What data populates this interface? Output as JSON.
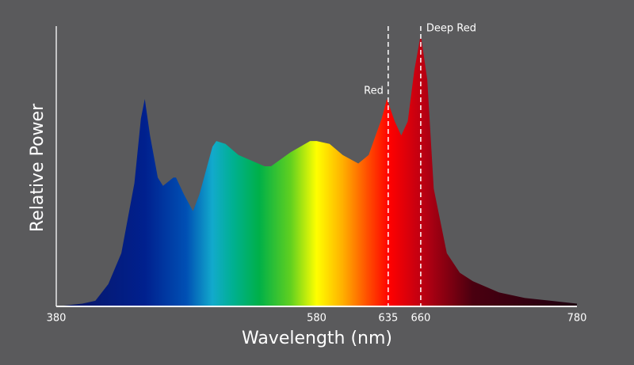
{
  "chart_data": {
    "type": "area",
    "x_label": "Wavelength (nm)",
    "y_label": "Relative Power",
    "x": [
      380,
      400,
      410,
      420,
      430,
      440,
      445,
      448,
      452,
      458,
      462,
      470,
      472,
      478,
      485,
      490,
      500,
      503,
      510,
      520,
      530,
      540,
      545,
      560,
      575,
      580,
      590,
      600,
      612,
      620,
      630,
      634,
      640,
      645,
      650,
      655,
      660,
      665,
      670,
      680,
      690,
      700,
      720,
      740,
      760,
      780
    ],
    "values": [
      0.0,
      0.01,
      0.02,
      0.08,
      0.19,
      0.44,
      0.67,
      0.74,
      0.61,
      0.46,
      0.43,
      0.46,
      0.46,
      0.4,
      0.34,
      0.4,
      0.57,
      0.59,
      0.58,
      0.54,
      0.52,
      0.5,
      0.5,
      0.55,
      0.59,
      0.59,
      0.58,
      0.54,
      0.51,
      0.54,
      0.67,
      0.74,
      0.66,
      0.61,
      0.66,
      0.84,
      0.97,
      0.81,
      0.42,
      0.19,
      0.12,
      0.09,
      0.05,
      0.03,
      0.02,
      0.01
    ],
    "xlim": [
      380,
      780
    ],
    "ylim": [
      0,
      1
    ],
    "xticks": [
      380,
      580,
      635,
      660,
      780
    ],
    "annotations": [
      {
        "text": "Red",
        "x": 635
      },
      {
        "text": "Deep Red",
        "x": 660
      }
    ]
  }
}
